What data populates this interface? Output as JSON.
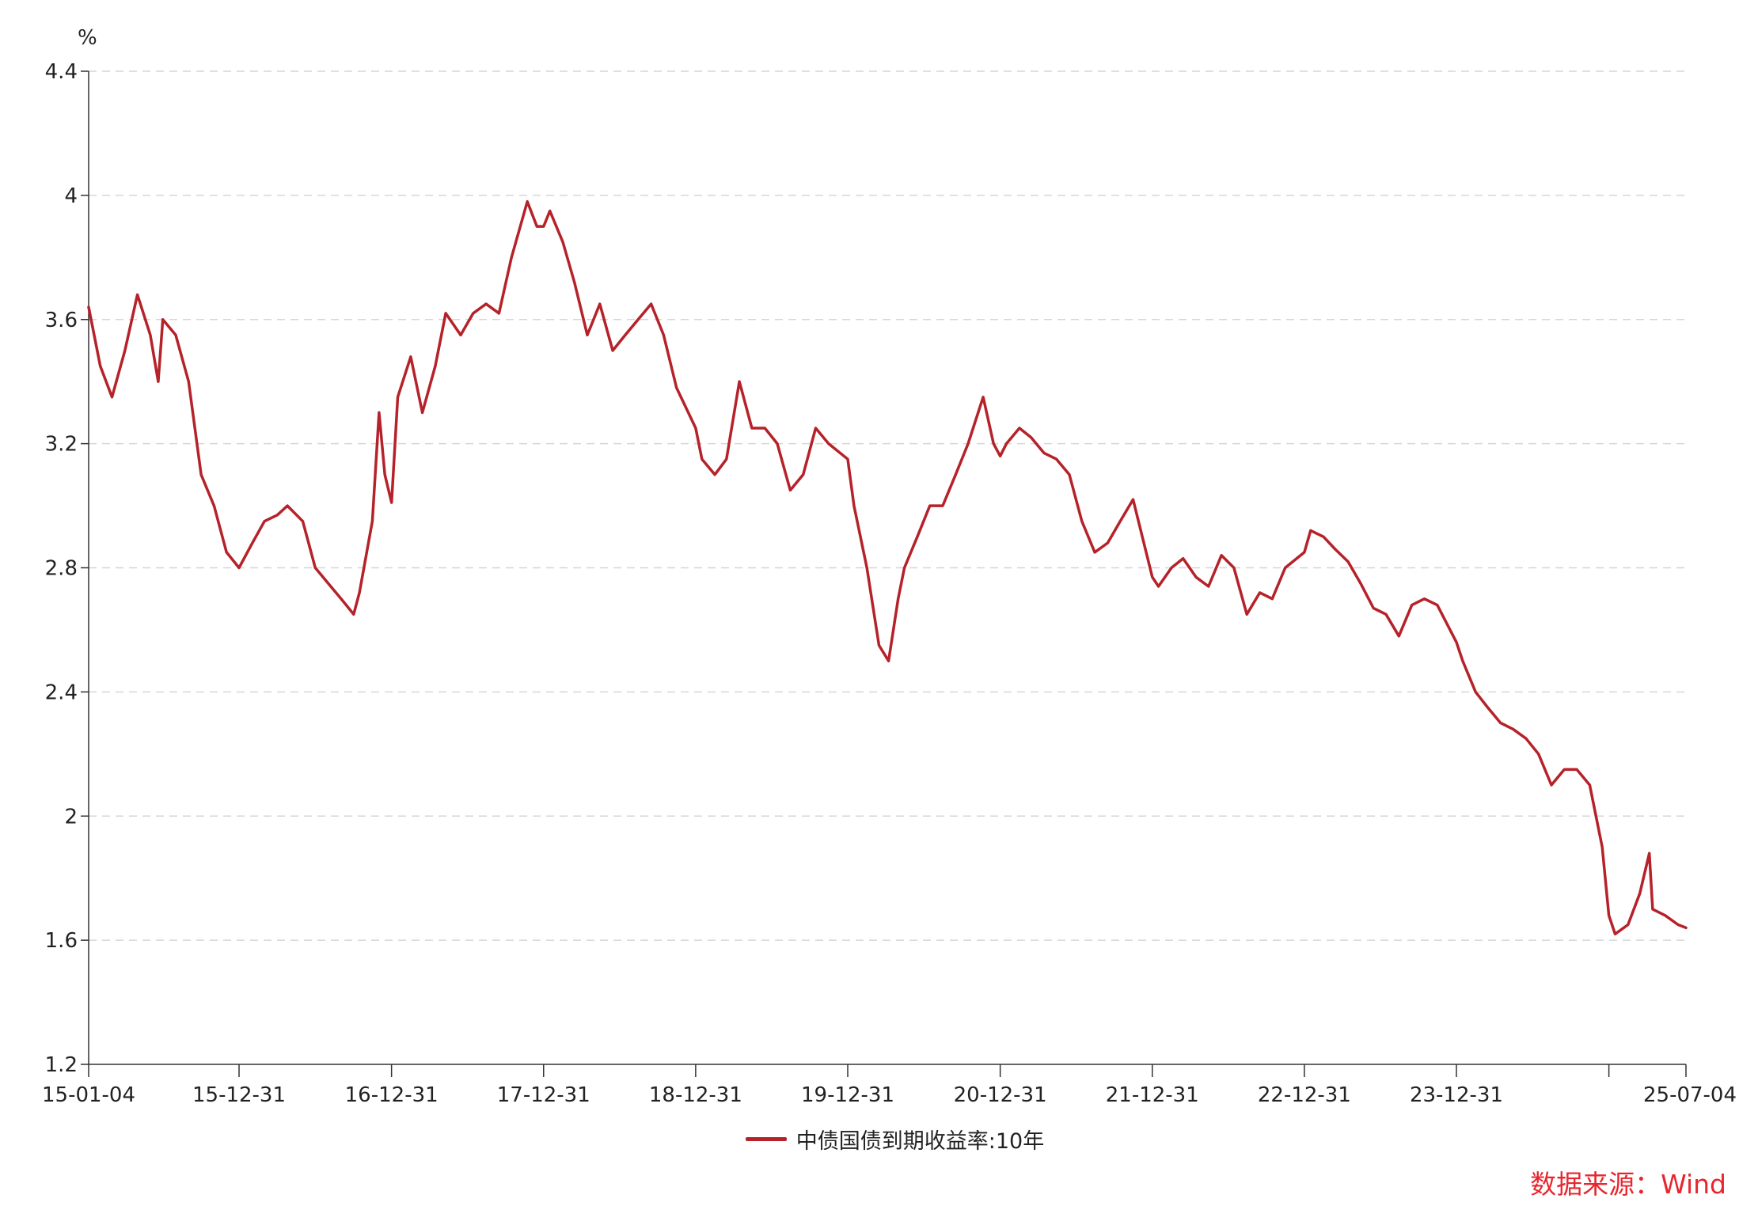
{
  "chart_data": {
    "type": "line",
    "title": "",
    "xlabel": "",
    "ylabel": "%",
    "ylim": [
      1.2,
      4.4
    ],
    "x_range": [
      "2015-01-04",
      "2025-07-04"
    ],
    "y_ticks": [
      "4.4",
      "4",
      "3.6",
      "3.2",
      "2.8",
      "2.4",
      "2",
      "1.6",
      "1.2"
    ],
    "x_ticks": [
      {
        "label": "15-01-04",
        "date": "2015-01-04"
      },
      {
        "label": "15-12-31",
        "date": "2015-12-31"
      },
      {
        "label": "16-12-31",
        "date": "2016-12-31"
      },
      {
        "label": "17-12-31",
        "date": "2017-12-31"
      },
      {
        "label": "18-12-31",
        "date": "2018-12-31"
      },
      {
        "label": "19-12-31",
        "date": "2019-12-31"
      },
      {
        "label": "20-12-31",
        "date": "2020-12-31"
      },
      {
        "label": "21-12-31",
        "date": "2021-12-31"
      },
      {
        "label": "22-12-31",
        "date": "2022-12-31"
      },
      {
        "label": "23-12-31",
        "date": "2023-12-31"
      },
      {
        "label": "",
        "date": "2024-12-31"
      },
      {
        "label": "25-07-04",
        "date": "2025-07-04"
      }
    ],
    "grid": true,
    "legend_position": "bottom-center",
    "series": [
      {
        "name": "中债国债到期收益率:10年",
        "color": "#b5222a",
        "x": [
          "2015-01-04",
          "2015-02-01",
          "2015-03-01",
          "2015-04-01",
          "2015-05-01",
          "2015-06-01",
          "2015-06-20",
          "2015-07-01",
          "2015-08-01",
          "2015-09-01",
          "2015-10-01",
          "2015-11-01",
          "2015-12-01",
          "2015-12-31",
          "2016-02-01",
          "2016-03-01",
          "2016-04-01",
          "2016-04-25",
          "2016-06-01",
          "2016-07-01",
          "2016-08-01",
          "2016-09-01",
          "2016-10-01",
          "2016-10-15",
          "2016-11-15",
          "2016-12-01",
          "2016-12-15",
          "2016-12-31",
          "2017-01-15",
          "2017-02-15",
          "2017-03-15",
          "2017-04-15",
          "2017-05-10",
          "2017-06-15",
          "2017-07-15",
          "2017-08-15",
          "2017-09-15",
          "2017-10-15",
          "2017-11-22",
          "2017-12-15",
          "2017-12-31",
          "2018-01-15",
          "2018-02-15",
          "2018-03-15",
          "2018-04-15",
          "2018-05-15",
          "2018-06-15",
          "2018-07-15",
          "2018-08-15",
          "2018-09-15",
          "2018-10-15",
          "2018-11-15",
          "2018-12-31",
          "2019-01-15",
          "2019-02-15",
          "2019-03-15",
          "2019-04-15",
          "2019-05-15",
          "2019-06-15",
          "2019-07-15",
          "2019-08-15",
          "2019-09-15",
          "2019-10-15",
          "2019-11-15",
          "2019-12-31",
          "2020-01-15",
          "2020-02-15",
          "2020-03-15",
          "2020-04-07",
          "2020-04-30",
          "2020-05-15",
          "2020-06-15",
          "2020-07-15",
          "2020-08-15",
          "2020-09-15",
          "2020-10-15",
          "2020-11-20",
          "2020-12-15",
          "2020-12-31",
          "2021-01-15",
          "2021-02-15",
          "2021-03-15",
          "2021-04-15",
          "2021-05-15",
          "2021-06-15",
          "2021-07-15",
          "2021-08-15",
          "2021-09-15",
          "2021-10-15",
          "2021-11-15",
          "2021-12-31",
          "2022-01-15",
          "2022-02-15",
          "2022-03-15",
          "2022-04-15",
          "2022-05-15",
          "2022-06-15",
          "2022-07-15",
          "2022-08-15",
          "2022-09-15",
          "2022-10-15",
          "2022-11-15",
          "2022-12-31",
          "2023-01-15",
          "2023-02-15",
          "2023-03-15",
          "2023-04-15",
          "2023-05-15",
          "2023-06-15",
          "2023-07-15",
          "2023-08-15",
          "2023-09-15",
          "2023-10-15",
          "2023-11-15",
          "2023-12-31",
          "2024-01-15",
          "2024-02-15",
          "2024-03-15",
          "2024-04-15",
          "2024-05-15",
          "2024-06-15",
          "2024-07-15",
          "2024-08-15",
          "2024-09-15",
          "2024-10-15",
          "2024-11-15",
          "2024-12-15",
          "2024-12-31",
          "2025-01-15",
          "2025-02-15",
          "2025-03-15",
          "2025-04-07",
          "2025-04-15",
          "2025-05-15",
          "2025-06-15",
          "2025-07-04"
        ],
        "values": [
          3.64,
          3.45,
          3.35,
          3.5,
          3.68,
          3.55,
          3.4,
          3.6,
          3.55,
          3.4,
          3.1,
          3.0,
          2.85,
          2.8,
          2.88,
          2.95,
          2.97,
          3.0,
          2.95,
          2.8,
          2.75,
          2.7,
          2.65,
          2.72,
          2.95,
          3.3,
          3.1,
          3.01,
          3.35,
          3.48,
          3.3,
          3.45,
          3.62,
          3.55,
          3.62,
          3.65,
          3.62,
          3.8,
          3.98,
          3.9,
          3.9,
          3.95,
          3.85,
          3.72,
          3.55,
          3.65,
          3.5,
          3.55,
          3.6,
          3.65,
          3.55,
          3.38,
          3.25,
          3.15,
          3.1,
          3.15,
          3.4,
          3.25,
          3.25,
          3.2,
          3.05,
          3.1,
          3.25,
          3.2,
          3.15,
          3.0,
          2.8,
          2.55,
          2.5,
          2.7,
          2.8,
          2.9,
          3.0,
          3.0,
          3.1,
          3.2,
          3.35,
          3.2,
          3.16,
          3.2,
          3.25,
          3.22,
          3.17,
          3.15,
          3.1,
          2.95,
          2.85,
          2.88,
          2.95,
          3.02,
          2.77,
          2.74,
          2.8,
          2.83,
          2.77,
          2.74,
          2.84,
          2.8,
          2.65,
          2.72,
          2.7,
          2.8,
          2.85,
          2.92,
          2.9,
          2.86,
          2.82,
          2.75,
          2.67,
          2.65,
          2.58,
          2.68,
          2.7,
          2.68,
          2.56,
          2.5,
          2.4,
          2.35,
          2.3,
          2.28,
          2.25,
          2.2,
          2.1,
          2.15,
          2.15,
          2.1,
          1.9,
          1.68,
          1.62,
          1.65,
          1.75,
          1.88,
          1.7,
          1.68,
          1.65,
          1.64
        ]
      }
    ]
  },
  "source": "数据来源：Wind"
}
